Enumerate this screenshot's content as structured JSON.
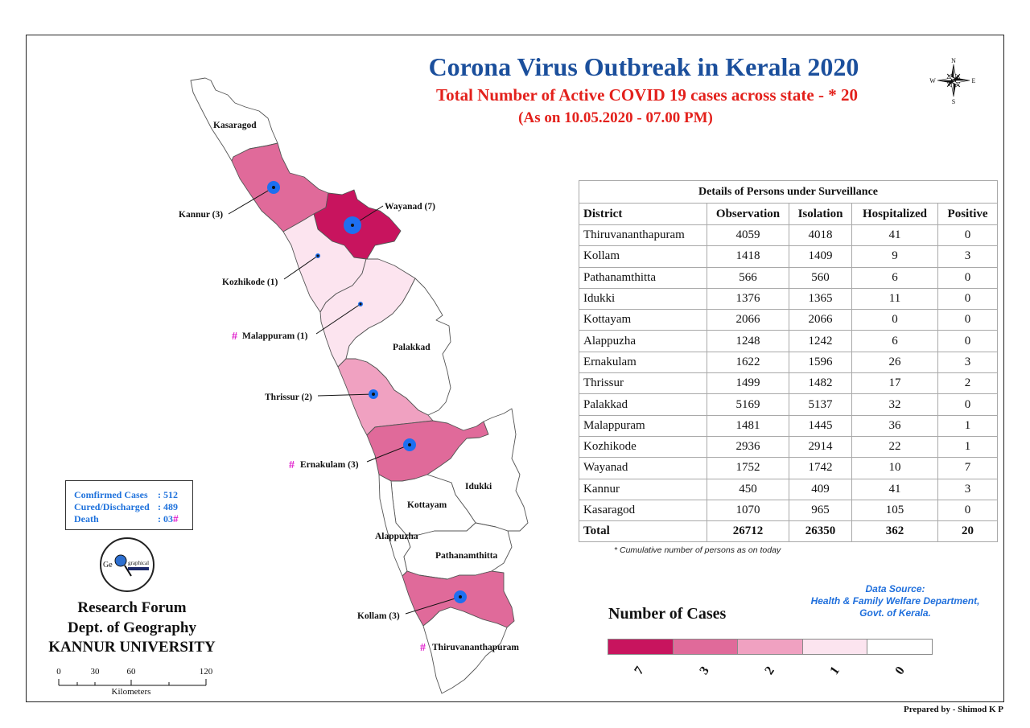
{
  "title": "Corona Virus Outbreak in Kerala 2020",
  "subtitle": "Total Number of Active COVID 19 cases across state - * 20",
  "date_line": "(As on 10.05.2020 - 07.00 PM)",
  "compass": {
    "n": "N",
    "e": "E",
    "s": "S",
    "w": "W"
  },
  "death_marker": "#",
  "map": {
    "districts": [
      {
        "label": "Kasaragod",
        "cases": 0
      },
      {
        "label": "Kannur (3)",
        "cases": 3
      },
      {
        "label": "Wayanad (7)",
        "cases": 7
      },
      {
        "label": "Kozhikode (1)",
        "cases": 1
      },
      {
        "label": "Malappuram (1)",
        "cases": 1
      },
      {
        "label": "Palakkad",
        "cases": 0
      },
      {
        "label": "Thrissur (2)",
        "cases": 2
      },
      {
        "label": "Ernakulam (3)",
        "cases": 3
      },
      {
        "label": "Idukki",
        "cases": 0
      },
      {
        "label": "Kottayam",
        "cases": 0
      },
      {
        "label": "Alappuzha",
        "cases": 0
      },
      {
        "label": "Pathanamthitta",
        "cases": 0
      },
      {
        "label": "Kollam (3)",
        "cases": 3
      },
      {
        "label": "Thiruvananthapuram",
        "cases": 0
      }
    ],
    "case_point_color": "#1e6ff0"
  },
  "table": {
    "caption": "Details of Persons under Surveillance",
    "headers": [
      "District",
      "Observation",
      "Isolation",
      "Hospitalized",
      "Positive"
    ],
    "rows": [
      [
        "Thiruvananthapuram",
        "4059",
        "4018",
        "41",
        "0"
      ],
      [
        "Kollam",
        "1418",
        "1409",
        "9",
        "3"
      ],
      [
        "Pathanamthitta",
        "566",
        "560",
        "6",
        "0"
      ],
      [
        "Idukki",
        "1376",
        "1365",
        "11",
        "0"
      ],
      [
        "Kottayam",
        "2066",
        "2066",
        "0",
        "0"
      ],
      [
        "Alappuzha",
        "1248",
        "1242",
        "6",
        "0"
      ],
      [
        "Ernakulam",
        "1622",
        "1596",
        "26",
        "3"
      ],
      [
        "Thrissur",
        "1499",
        "1482",
        "17",
        "2"
      ],
      [
        "Palakkad",
        "5169",
        "5137",
        "32",
        "0"
      ],
      [
        "Malappuram",
        "1481",
        "1445",
        "36",
        "1"
      ],
      [
        "Kozhikode",
        "2936",
        "2914",
        "22",
        "1"
      ],
      [
        "Wayanad",
        "1752",
        "1742",
        "10",
        "7"
      ],
      [
        "Kannur",
        "450",
        "409",
        "41",
        "3"
      ],
      [
        "Kasaragod",
        "1070",
        "965",
        "105",
        "0"
      ]
    ],
    "total": [
      "Total",
      "26712",
      "26350",
      "362",
      "20"
    ],
    "note": "* Cumulative number of persons as on today"
  },
  "data_source": {
    "lines": [
      "Data Source:",
      "Health & Family Welfare Department,",
      "Govt. of Kerala."
    ]
  },
  "legend": {
    "title": "Number of Cases",
    "items": [
      {
        "label": "7",
        "color": "#c8145e"
      },
      {
        "label": "3",
        "color": "#e06a9a"
      },
      {
        "label": "2",
        "color": "#f0a1c1"
      },
      {
        "label": "1",
        "color": "#fce4ef"
      },
      {
        "label": "0",
        "color": "#ffffff"
      }
    ]
  },
  "stats": {
    "rows": [
      {
        "label": "Comfirmed Cases",
        "value": ": 512"
      },
      {
        "label": "Cured/Discharged",
        "value": ": 489"
      },
      {
        "label": "Death",
        "value": ": 03"
      }
    ]
  },
  "logo": {
    "left": "Ge",
    "right": "graphical"
  },
  "org": {
    "lines": [
      "Research Forum",
      "Dept. of Geography",
      "KANNUR UNIVERSITY"
    ]
  },
  "scale": {
    "ticks": [
      "0",
      "30",
      "60",
      "120"
    ],
    "unit": "Kilometers"
  },
  "prepared_by": "Prepared by - Shimod K P"
}
